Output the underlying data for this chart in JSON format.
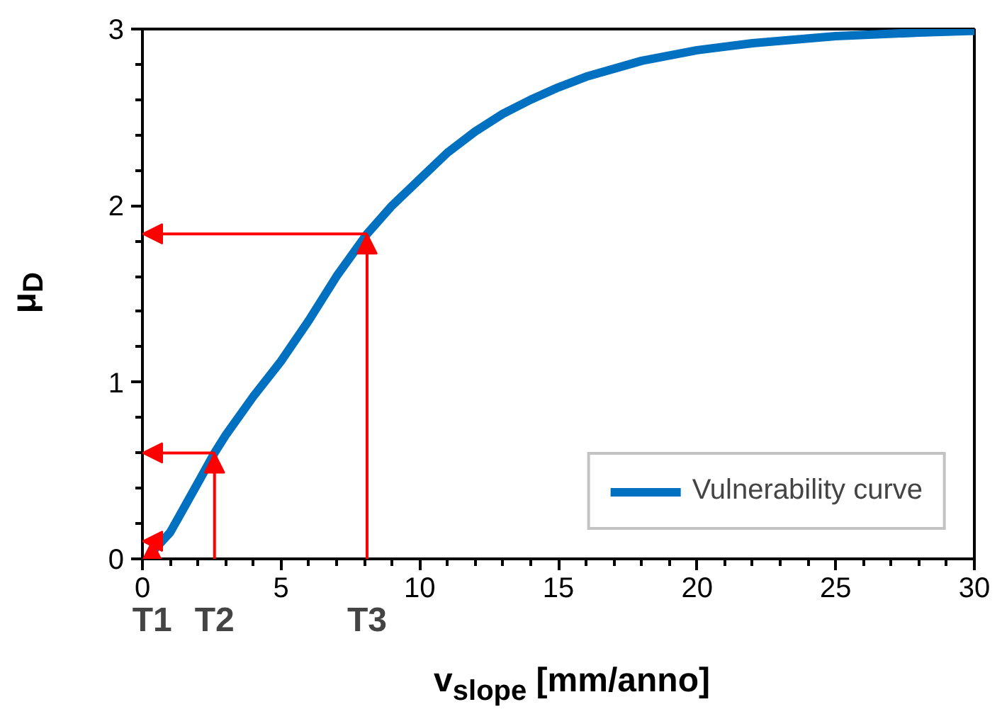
{
  "chart_data": {
    "type": "line",
    "xlabel": "v$_{slope}$ [mm/anno]",
    "ylabel": "μ$_{D}$",
    "x": [
      0.3,
      1,
      2,
      2.6,
      3,
      4,
      5,
      6,
      7,
      8.1,
      9,
      10,
      11,
      12,
      13,
      14,
      15,
      16,
      18,
      20,
      22,
      25,
      28,
      30
    ],
    "series": [
      {
        "name": "Vulnerability curve",
        "color": "#0070c0",
        "values": [
          0.03,
          0.15,
          0.43,
          0.6,
          0.7,
          0.92,
          1.12,
          1.35,
          1.6,
          1.84,
          2.0,
          2.15,
          2.3,
          2.42,
          2.52,
          2.6,
          2.67,
          2.73,
          2.82,
          2.88,
          2.92,
          2.96,
          2.98,
          2.99
        ]
      }
    ],
    "xlim": [
      0,
      30
    ],
    "xticks": [
      0,
      5,
      10,
      15,
      20,
      25,
      30
    ],
    "ylim": [
      0,
      3
    ],
    "yticks": [
      0,
      1,
      2,
      3
    ],
    "annotations": [
      {
        "text": "T1",
        "x": 0.35,
        "y": 0.1
      },
      {
        "text": "T2",
        "x": 2.6,
        "y": 0.6
      },
      {
        "text": "T3",
        "x": 8.1,
        "y": 1.84
      }
    ],
    "legend": "bottom right",
    "grid": false,
    "marker": "none",
    "line_style": "solid"
  }
}
